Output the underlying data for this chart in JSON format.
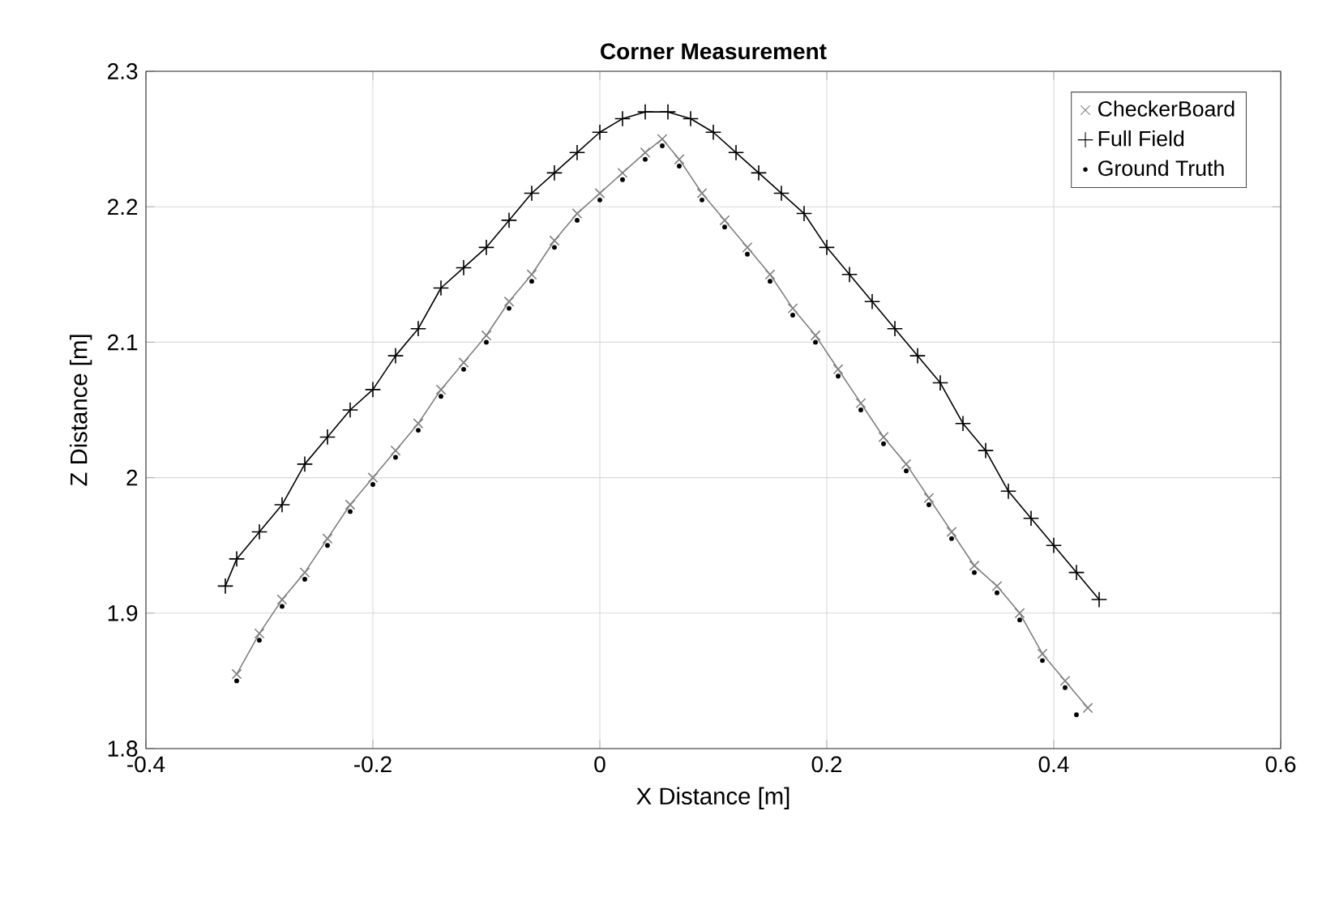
{
  "chart_data": {
    "type": "line",
    "title": "Corner Measurement",
    "xlabel": "X Distance [m]",
    "ylabel": "Z Distance [m]",
    "xlim": [
      -0.4,
      0.6
    ],
    "xticks": [
      -0.4,
      -0.2,
      0,
      0.2,
      0.4,
      0.6
    ],
    "ylim": [
      1.8,
      2.3
    ],
    "yticks": [
      1.8,
      1.9,
      2,
      2.1,
      2.2,
      2.3
    ],
    "grid": true,
    "legend": "top right",
    "series": [
      {
        "name": "CheckerBoard",
        "color": "#808080",
        "marker": "cross",
        "line_style": "solid",
        "x": [
          -0.32,
          -0.3,
          -0.28,
          -0.26,
          -0.24,
          -0.22,
          -0.2,
          -0.18,
          -0.16,
          -0.14,
          -0.12,
          -0.1,
          -0.08,
          -0.06,
          -0.04,
          -0.02,
          0,
          0.02,
          0.04,
          0.055,
          0.07,
          0.09,
          0.11,
          0.13,
          0.15,
          0.17,
          0.19,
          0.21,
          0.23,
          0.25,
          0.27,
          0.29,
          0.31,
          0.33,
          0.35,
          0.37,
          0.39,
          0.41,
          0.43
        ],
        "values": [
          1.855,
          1.885,
          1.91,
          1.93,
          1.955,
          1.98,
          2.0,
          2.02,
          2.04,
          2.065,
          2.085,
          2.105,
          2.13,
          2.15,
          2.175,
          2.195,
          2.21,
          2.225,
          2.24,
          2.25,
          2.235,
          2.21,
          2.19,
          2.17,
          2.15,
          2.125,
          2.105,
          2.08,
          2.055,
          2.03,
          2.01,
          1.985,
          1.96,
          1.935,
          1.92,
          1.9,
          1.87,
          1.85,
          1.83
        ]
      },
      {
        "name": "Full Field",
        "color": "#000000",
        "marker": "plus",
        "line_style": "solid",
        "x": [
          -0.33,
          -0.32,
          -0.3,
          -0.28,
          -0.26,
          -0.24,
          -0.22,
          -0.2,
          -0.18,
          -0.16,
          -0.14,
          -0.12,
          -0.1,
          -0.08,
          -0.06,
          -0.04,
          -0.02,
          0,
          0.02,
          0.04,
          0.06,
          0.08,
          0.1,
          0.12,
          0.14,
          0.16,
          0.18,
          0.2,
          0.22,
          0.24,
          0.26,
          0.28,
          0.3,
          0.32,
          0.34,
          0.36,
          0.38,
          0.4,
          0.42,
          0.44
        ],
        "values": [
          1.92,
          1.94,
          1.96,
          1.98,
          2.01,
          2.03,
          2.05,
          2.065,
          2.09,
          2.11,
          2.14,
          2.155,
          2.17,
          2.19,
          2.21,
          2.225,
          2.24,
          2.255,
          2.265,
          2.27,
          2.27,
          2.265,
          2.255,
          2.24,
          2.225,
          2.21,
          2.195,
          2.17,
          2.15,
          2.13,
          2.11,
          2.09,
          2.07,
          2.04,
          2.02,
          1.99,
          1.97,
          1.95,
          1.93,
          1.91
        ]
      },
      {
        "name": "Ground Truth",
        "type": "scatter",
        "color": "#000000",
        "marker": "point",
        "x": [
          -0.32,
          -0.3,
          -0.28,
          -0.26,
          -0.24,
          -0.22,
          -0.2,
          -0.18,
          -0.16,
          -0.14,
          -0.12,
          -0.1,
          -0.08,
          -0.06,
          -0.04,
          -0.02,
          0,
          0.02,
          0.04,
          0.055,
          0.07,
          0.09,
          0.11,
          0.13,
          0.15,
          0.17,
          0.19,
          0.21,
          0.23,
          0.25,
          0.27,
          0.29,
          0.31,
          0.33,
          0.35,
          0.37,
          0.39,
          0.41,
          0.42
        ],
        "values": [
          1.85,
          1.88,
          1.905,
          1.925,
          1.95,
          1.975,
          1.995,
          2.015,
          2.035,
          2.06,
          2.08,
          2.1,
          2.125,
          2.145,
          2.17,
          2.19,
          2.205,
          2.22,
          2.235,
          2.245,
          2.23,
          2.205,
          2.185,
          2.165,
          2.145,
          2.12,
          2.1,
          2.075,
          2.05,
          2.025,
          2.005,
          1.98,
          1.955,
          1.93,
          1.915,
          1.895,
          1.865,
          1.845,
          1.825
        ]
      }
    ]
  }
}
